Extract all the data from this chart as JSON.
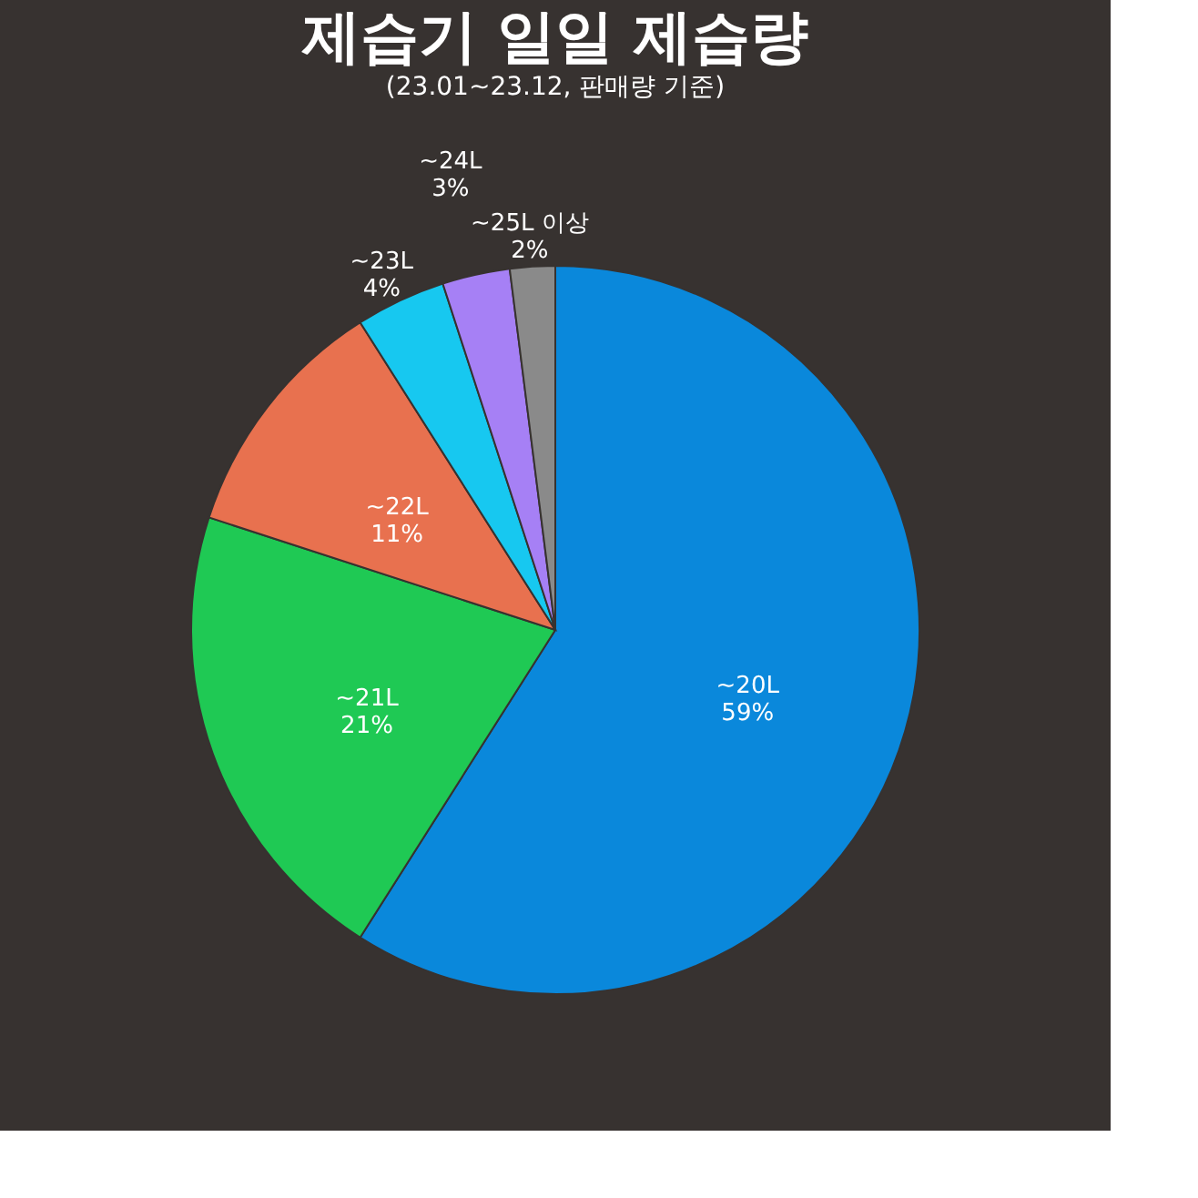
{
  "chart_data": {
    "type": "pie",
    "title": "제습기 일일 제습량",
    "subtitle": "(23.01~23.12, 판매량 기준)",
    "categories": [
      "~20L",
      "~21L",
      "~22L",
      "~23L",
      "~24L",
      "~25L 이상"
    ],
    "values": [
      59,
      21,
      11,
      4,
      3,
      2
    ],
    "value_labels": [
      "59%",
      "21%",
      "11%",
      "4%",
      "3%",
      "2%"
    ],
    "colors": [
      "#0a88db",
      "#1fc954",
      "#e8714f",
      "#17c8f0",
      "#a680f5",
      "#8a8a8a"
    ],
    "legend": false
  }
}
